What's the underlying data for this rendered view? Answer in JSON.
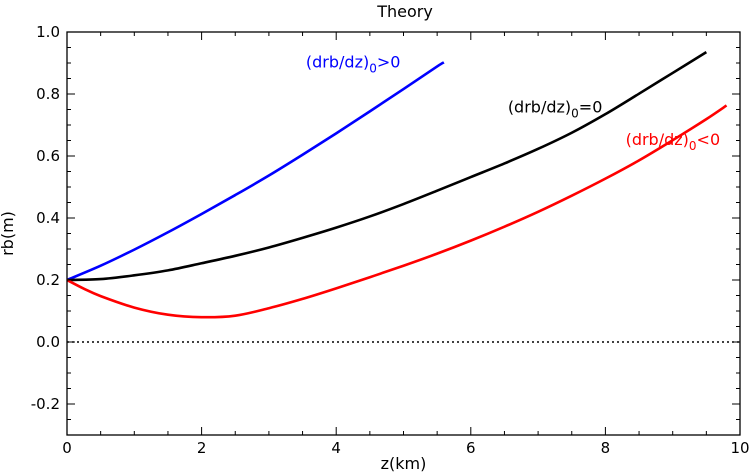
{
  "chart_data": {
    "type": "line",
    "title": "Theory",
    "xlabel": "z(km)",
    "ylabel": "rb(m)",
    "xlim": [
      0,
      10
    ],
    "ylim": [
      -0.3,
      1.0
    ],
    "xticks": [
      0,
      2,
      4,
      6,
      8,
      10
    ],
    "xtick_labels": [
      "0",
      "2",
      "4",
      "6",
      "8",
      "10"
    ],
    "yticks": [
      -0.2,
      0.0,
      0.2,
      0.4,
      0.6,
      0.8,
      1.0
    ],
    "ytick_labels": [
      "-0.2",
      "0.0",
      "0.2",
      "0.4",
      "0.6",
      "0.8",
      "1.0"
    ],
    "grid": false,
    "reference_line": {
      "y": 0.0,
      "style": "dotted",
      "color": "#000000"
    },
    "series": [
      {
        "color": "#0000ff",
        "x": [
          0,
          0.5,
          1,
          1.5,
          2,
          2.5,
          3,
          3.5,
          4,
          4.5,
          5,
          5.5,
          5.6
        ],
        "y": [
          0.2,
          0.246,
          0.298,
          0.354,
          0.413,
          0.474,
          0.537,
          0.604,
          0.673,
          0.744,
          0.816,
          0.889,
          0.902
        ]
      },
      {
        "color": "#000000",
        "x": [
          0,
          0.5,
          1,
          1.5,
          2,
          2.5,
          3,
          3.5,
          4,
          4.5,
          5,
          5.5,
          6,
          6.5,
          7,
          7.5,
          8,
          8.5,
          9,
          9.5
        ],
        "y": [
          0.2,
          0.203,
          0.215,
          0.231,
          0.254,
          0.278,
          0.305,
          0.336,
          0.369,
          0.405,
          0.445,
          0.488,
          0.532,
          0.576,
          0.623,
          0.675,
          0.735,
          0.801,
          0.868,
          0.935
        ]
      },
      {
        "color": "#ff0000",
        "x": [
          0,
          0.25,
          0.5,
          1,
          1.5,
          2,
          2.5,
          3,
          3.5,
          4,
          4.5,
          5,
          5.5,
          6,
          6.5,
          7,
          7.5,
          8,
          8.5,
          9,
          9.5,
          9.8
        ],
        "y": [
          0.2,
          0.172,
          0.148,
          0.111,
          0.088,
          0.08,
          0.085,
          0.109,
          0.139,
          0.173,
          0.209,
          0.246,
          0.285,
          0.327,
          0.372,
          0.42,
          0.472,
          0.527,
          0.586,
          0.651,
          0.719,
          0.763
        ]
      }
    ],
    "annotations": [
      {
        "base": "(drb/dz)",
        "sub": "0",
        "rel": ">0",
        "color": "#0000ff",
        "x": 3.55,
        "y": 0.885
      },
      {
        "base": "(drb/dz)",
        "sub": "0",
        "rel": "=0",
        "color": "#000000",
        "x": 6.55,
        "y": 0.74
      },
      {
        "base": "(drb/dz)",
        "sub": "0",
        "rel": "<0",
        "color": "#ff0000",
        "x": 8.3,
        "y": 0.635
      }
    ]
  }
}
